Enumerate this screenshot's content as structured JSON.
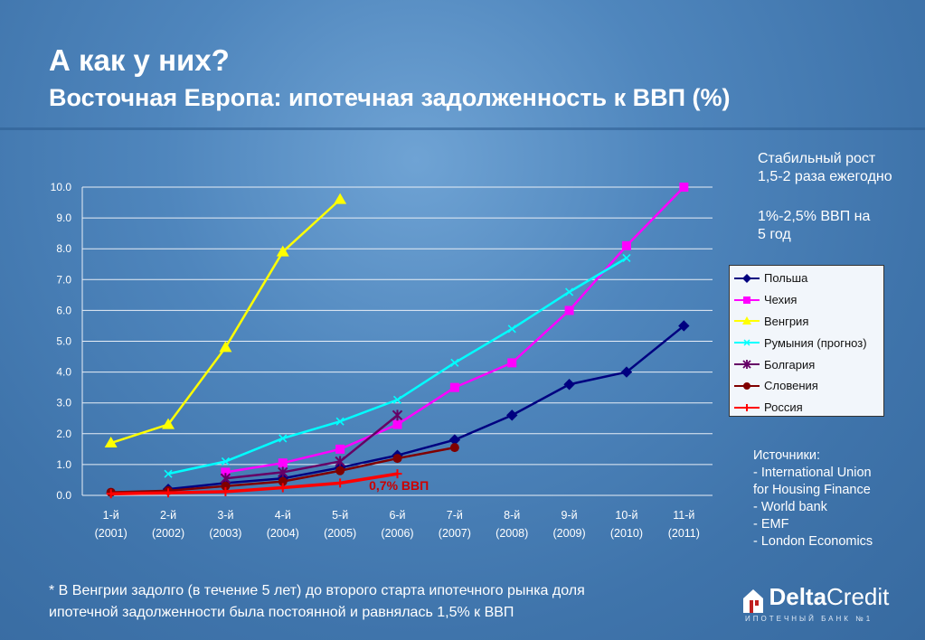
{
  "title": "А как у них?",
  "subtitle": "Восточная Европа: ипотечная задолженность к ВВП (%)",
  "notes": {
    "growth_line1": "Стабильный рост",
    "growth_line2": "1,5-2 раза ежегодно",
    "gdp_line1": "1%-2,5% ВВП на",
    "gdp_line2": "5 год"
  },
  "sources": {
    "heading": "Источники:",
    "items": [
      "- International Union",
      "for Housing Finance",
      "- World bank",
      "- EMF",
      "- London Economics"
    ]
  },
  "footnote": {
    "line1": "* В Венгрии задолго (в течение 5 лет) до второго старта ипотечного рынка доля",
    "line2": "ипотечной задолженности была постоянной и равнялась 1,5% к ВВП"
  },
  "logo": {
    "name_bold": "Delta",
    "name_regular": "Credit",
    "tagline": "ИПОТЕЧНЫЙ БАНК №1"
  },
  "chart_data": {
    "type": "line",
    "title": "",
    "xlabel": "",
    "ylabel": "",
    "ylim": [
      0,
      10
    ],
    "yticks": [
      "0.0",
      "1.0",
      "2.0",
      "3.0",
      "4.0",
      "5.0",
      "6.0",
      "7.0",
      "8.0",
      "9.0",
      "10.0"
    ],
    "categories": [
      [
        "1-й",
        "(2001)"
      ],
      [
        "2-й",
        "(2002)"
      ],
      [
        "3-й",
        "(2003)"
      ],
      [
        "4-й",
        "(2004)"
      ],
      [
        "5-й",
        "(2005)"
      ],
      [
        "6-й",
        "(2006)"
      ],
      [
        "7-й",
        "(2007)"
      ],
      [
        "8-й",
        "(2008)"
      ],
      [
        "9-й",
        "(2009)"
      ],
      [
        "10-й",
        "(2010)"
      ],
      [
        "11-й",
        "(2011)"
      ]
    ],
    "grid": true,
    "legend_position": "right",
    "annotation": "0,7% ВВП",
    "annotation_color": "#cc0000",
    "series": [
      {
        "name": "Польша",
        "color": "#000080",
        "marker": "diamond",
        "values": [
          null,
          0.2,
          0.4,
          0.55,
          0.9,
          1.3,
          1.8,
          2.6,
          3.6,
          4.0,
          5.5
        ]
      },
      {
        "name": "Чехия",
        "color": "#ff00ff",
        "marker": "square",
        "values": [
          null,
          null,
          0.75,
          1.05,
          1.5,
          2.3,
          3.5,
          4.3,
          6.0,
          8.1,
          10.0
        ]
      },
      {
        "name": "Венгрия",
        "color": "#ffff00",
        "marker": "triangle",
        "values": [
          1.7,
          2.3,
          4.8,
          7.9,
          9.6,
          null,
          null,
          null,
          null,
          null,
          null
        ]
      },
      {
        "name": "Румыния (прогноз)",
        "color": "#00ffff",
        "marker": "x",
        "values": [
          null,
          0.7,
          1.1,
          1.85,
          2.4,
          3.1,
          4.3,
          5.4,
          6.6,
          7.7,
          null
        ]
      },
      {
        "name": "Болгария",
        "color": "#660066",
        "marker": "star",
        "values": [
          null,
          null,
          0.55,
          0.75,
          1.1,
          2.6,
          null,
          null,
          null,
          null,
          null
        ]
      },
      {
        "name": "Словения",
        "color": "#800000",
        "marker": "circle",
        "values": [
          0.1,
          0.15,
          0.3,
          0.45,
          0.8,
          1.2,
          1.55,
          null,
          null,
          null,
          null
        ]
      },
      {
        "name": "Россия",
        "color": "#ff0000",
        "marker": "plus",
        "values": [
          0.05,
          0.08,
          0.12,
          0.25,
          0.4,
          0.7,
          null,
          null,
          null,
          null,
          null
        ]
      }
    ]
  }
}
